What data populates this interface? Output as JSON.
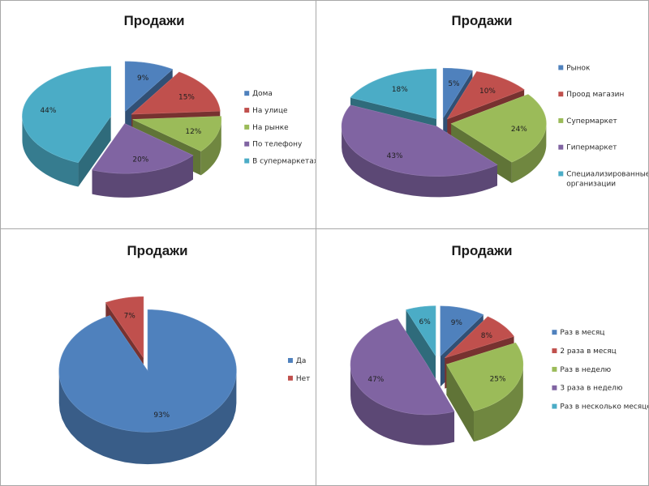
{
  "chart_data": [
    {
      "type": "pie",
      "title": "Продажи",
      "legend_position": "right",
      "categories": [
        "Дома",
        "На улице",
        "На рынке",
        "По телефону",
        "В супермаркетах"
      ],
      "values": [
        9,
        15,
        12,
        20,
        44
      ],
      "labels": [
        "9%",
        "15%",
        "12%",
        "20%",
        "44%"
      ],
      "colors": [
        "#4f81bd",
        "#c0504d",
        "#9bbb59",
        "#8064a2",
        "#4bacc6"
      ]
    },
    {
      "type": "pie",
      "title": "Продажи",
      "legend_position": "right",
      "categories": [
        "Рынок",
        "Проод магазин",
        "Супермаркет",
        "Гипермаркет",
        "Специализированные организации"
      ],
      "values": [
        5,
        10,
        24,
        43,
        18
      ],
      "labels": [
        "5%",
        "10%",
        "24%",
        "43%",
        "18%"
      ],
      "colors": [
        "#4f81bd",
        "#c0504d",
        "#9bbb59",
        "#8064a2",
        "#4bacc6"
      ]
    },
    {
      "type": "pie",
      "title": "Продажи",
      "legend_position": "right",
      "categories": [
        "Да",
        "Нет"
      ],
      "values": [
        93,
        7
      ],
      "labels": [
        "93%",
        "7%"
      ],
      "colors": [
        "#4f81bd",
        "#c0504d"
      ]
    },
    {
      "type": "pie",
      "title": "Продажи",
      "legend_position": "right",
      "categories": [
        "Раз в месяц",
        "2 раза в месяц",
        "Раз в неделю",
        "3 раза в неделю",
        "Раз в несколько месяцев"
      ],
      "values": [
        9,
        8,
        25,
        47,
        6
      ],
      "labels": [
        "9%",
        "8%",
        "25%",
        "47%",
        "6%"
      ],
      "colors": [
        "#4f81bd",
        "#c0504d",
        "#9bbb59",
        "#8064a2",
        "#4bacc6"
      ]
    }
  ]
}
